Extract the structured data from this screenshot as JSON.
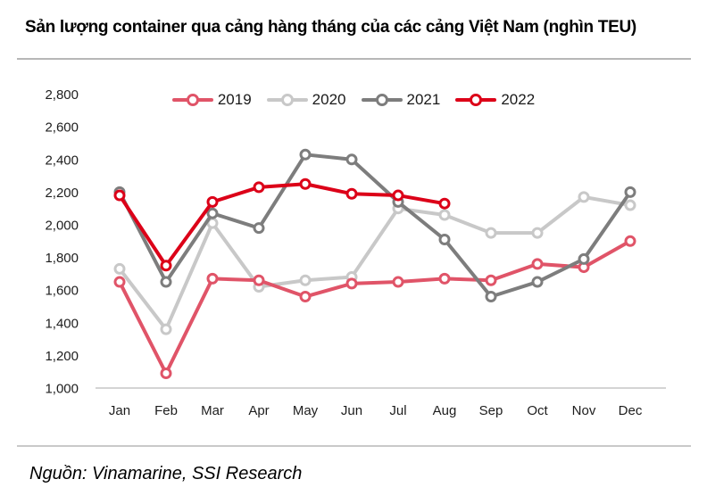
{
  "title": "Sản lượng container qua cảng hàng tháng của các cảng Việt Nam (nghìn TEU)",
  "source": "Nguồn: Vinamarine, SSI Research",
  "chart_data": {
    "type": "line",
    "title": "Sản lượng container qua cảng hàng tháng của các cảng Việt Nam (nghìn TEU)",
    "ylabel": "nghìn TEU",
    "xlabel": "",
    "categories": [
      "Jan",
      "Feb",
      "Mar",
      "Apr",
      "May",
      "Jun",
      "Jul",
      "Aug",
      "Sep",
      "Oct",
      "Nov",
      "Dec"
    ],
    "series": [
      {
        "name": "2019",
        "color": "#e05468",
        "values": [
          1650,
          1090,
          1670,
          1660,
          1560,
          1640,
          1650,
          1670,
          1660,
          1760,
          1740,
          1900
        ]
      },
      {
        "name": "2020",
        "color": "#c8c8c8",
        "values": [
          1730,
          1360,
          2010,
          1620,
          1660,
          1680,
          2100,
          2060,
          1950,
          1950,
          2170,
          2120
        ]
      },
      {
        "name": "2021",
        "color": "#7d7d7d",
        "values": [
          2200,
          1650,
          2070,
          1980,
          2430,
          2400,
          2140,
          1910,
          1560,
          1650,
          1790,
          2200
        ]
      },
      {
        "name": "2022",
        "color": "#dc0018",
        "values": [
          2180,
          1750,
          2140,
          2230,
          2250,
          2190,
          2180,
          2130,
          null,
          null,
          null,
          null
        ]
      }
    ],
    "ylim": [
      1000,
      2800
    ],
    "ytick_step": 200,
    "grid": false,
    "legend_position": "top",
    "axis_color": "#c6c6c6",
    "label_color": "#1d1d1d"
  }
}
